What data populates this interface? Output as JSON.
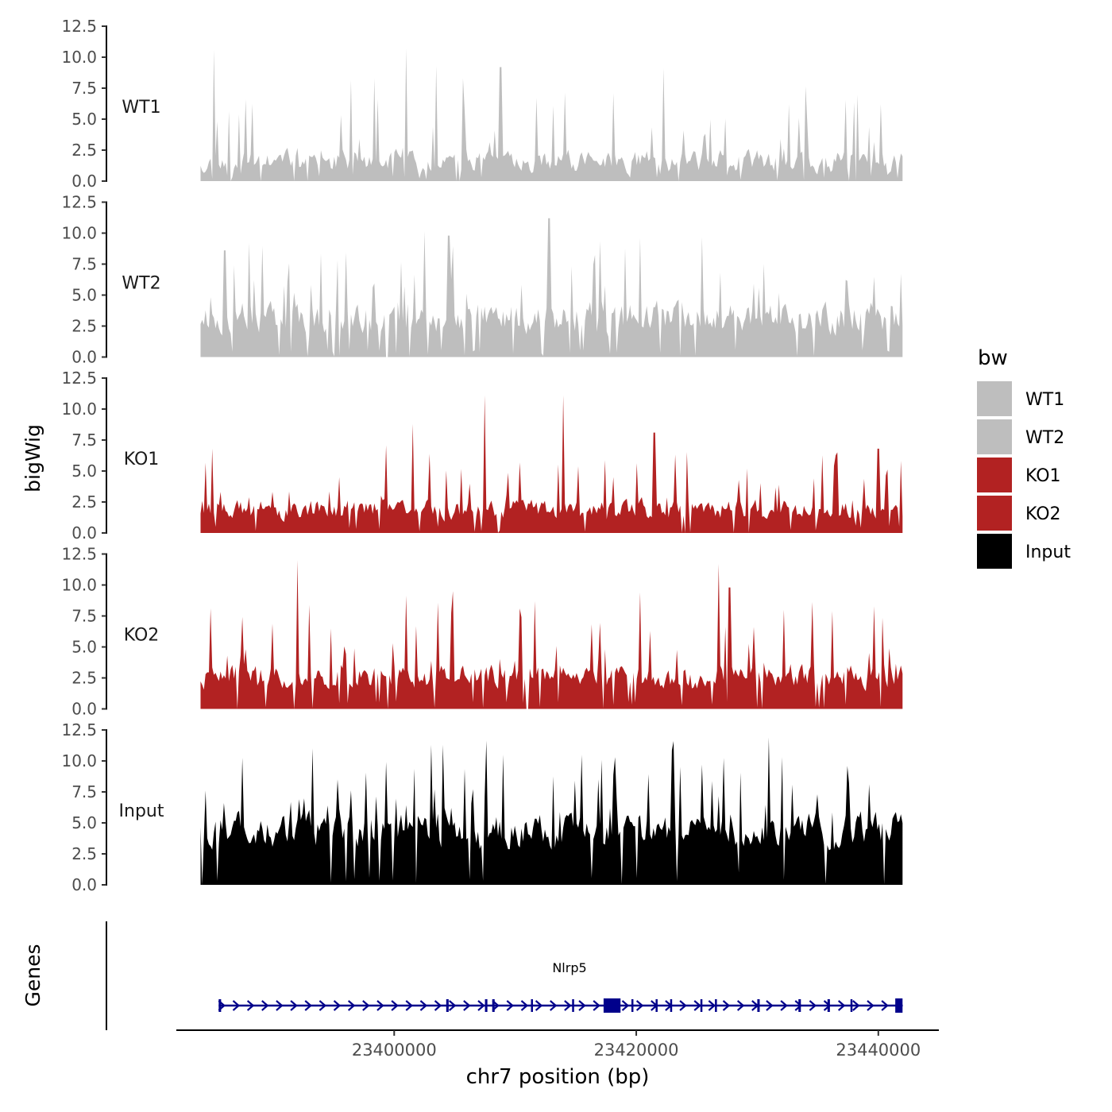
{
  "chart_data": {
    "type": "area",
    "ylabel": "bigWig",
    "xlabel": "chr7 position (bp)",
    "ylim": [
      0,
      12.5
    ],
    "yticks": [
      "0.0",
      "2.5",
      "5.0",
      "7.5",
      "10.0",
      "12.5"
    ],
    "xlim": [
      23382000,
      23445000
    ],
    "xticks": [
      23400000,
      23420000,
      23440000
    ],
    "xtick_labels": [
      "23400000",
      "23420000",
      "23440000"
    ],
    "region": [
      23384000,
      23442000
    ],
    "legend": {
      "title": "bw",
      "position": "right",
      "entries": [
        {
          "label": "WT1",
          "color": "#bebebe"
        },
        {
          "label": "WT2",
          "color": "#bebebe"
        },
        {
          "label": "KO1",
          "color": "#b22222"
        },
        {
          "label": "KO2",
          "color": "#b22222"
        },
        {
          "label": "Input",
          "color": "#000000"
        }
      ]
    },
    "series": [
      {
        "name": "WT1",
        "color": "#bebebe",
        "base": 1.6,
        "noise": 1.3,
        "spike_prob": 0.13,
        "spike_max": 6.5,
        "seed": 11,
        "peaks": [
          [
            23385100,
            10.6
          ],
          [
            23401000,
            10.7
          ],
          [
            23422200,
            9.1
          ],
          [
            23403500,
            9.3
          ],
          [
            23408800,
            9.2
          ]
        ],
        "dips": [
          [
            23386500,
            0.0
          ],
          [
            23389000,
            0.0
          ],
          [
            23405400,
            0.0
          ],
          [
            23423500,
            0.0
          ]
        ]
      },
      {
        "name": "WT2",
        "color": "#bebebe",
        "base": 3.2,
        "noise": 1.9,
        "spike_prob": 0.12,
        "spike_max": 6.0,
        "seed": 23,
        "peaks": [
          [
            23386000,
            8.6
          ],
          [
            23412800,
            11.2
          ],
          [
            23404500,
            9.8
          ],
          [
            23420300,
            9.6
          ],
          [
            23425400,
            9.7
          ]
        ],
        "dips": [
          [
            23399400,
            0.0
          ],
          [
            23383900,
            0.0
          ]
        ]
      },
      {
        "name": "KO1",
        "color": "#b22222",
        "base": 1.9,
        "noise": 1.2,
        "spike_prob": 0.1,
        "spike_max": 5.0,
        "seed": 37,
        "peaks": [
          [
            23407500,
            11.1
          ],
          [
            23414000,
            11.1
          ],
          [
            23401500,
            8.8
          ],
          [
            23421500,
            8.1
          ],
          [
            23385000,
            6.8
          ],
          [
            23440000,
            6.8
          ]
        ],
        "dips": [
          [
            23423800,
            0.0
          ],
          [
            23424000,
            0.0
          ]
        ]
      },
      {
        "name": "KO2",
        "color": "#b22222",
        "base": 2.6,
        "noise": 1.4,
        "spike_prob": 0.14,
        "spike_max": 6.0,
        "seed": 41,
        "peaks": [
          [
            23392000,
            12.0
          ],
          [
            23426800,
            11.7
          ],
          [
            23404800,
            9.5
          ],
          [
            23420300,
            9.4
          ],
          [
            23393000,
            8.4
          ],
          [
            23427700,
            9.8
          ]
        ],
        "dips": [
          [
            23387000,
            0.0
          ],
          [
            23391700,
            0.0
          ],
          [
            23411000,
            0.0
          ]
        ]
      },
      {
        "name": "Input",
        "color": "#000000",
        "base": 4.4,
        "noise": 2.0,
        "spike_prob": 0.16,
        "spike_max": 7.0,
        "seed": 53,
        "peaks": [
          [
            23393200,
            11.0
          ],
          [
            23404000,
            11.3
          ],
          [
            23423100,
            11.6
          ],
          [
            23431000,
            11.9
          ],
          [
            23409000,
            10.5
          ],
          [
            23418300,
            10.3
          ]
        ],
        "dips": [
          [
            23384100,
            0.0
          ],
          [
            23396000,
            0.3
          ],
          [
            23428500,
            1.0
          ]
        ]
      }
    ],
    "genes": {
      "title": "Genes",
      "name": "Nlrp5",
      "color": "#00008b",
      "start": 23385500,
      "end": 23442000,
      "strand": "+",
      "exons": [
        [
          23385500,
          23385700
        ],
        [
          23404300,
          23404500
        ],
        [
          23407500,
          23407700
        ],
        [
          23408100,
          23408300
        ],
        [
          23411300,
          23411400
        ],
        [
          23414700,
          23414800
        ],
        [
          23417300,
          23418700
        ],
        [
          23419600,
          23419700
        ],
        [
          23421600,
          23421700
        ],
        [
          23422800,
          23422900
        ],
        [
          23425300,
          23425400
        ],
        [
          23426500,
          23426600
        ],
        [
          23430000,
          23430200
        ],
        [
          23433400,
          23433600
        ],
        [
          23435800,
          23436000
        ],
        [
          23437700,
          23437800
        ],
        [
          23441400,
          23442000
        ]
      ]
    }
  }
}
